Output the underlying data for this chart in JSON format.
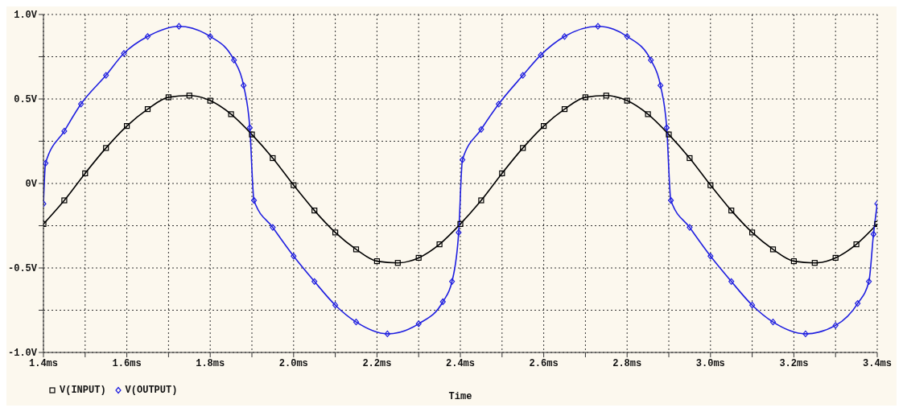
{
  "chart_data": {
    "type": "line",
    "xlabel": "Time",
    "legend": "bottom left",
    "grid": true,
    "xlim": [
      1.4,
      3.4
    ],
    "xticks": [
      {
        "value": 1.4,
        "label": "1.4ms"
      },
      {
        "value": 1.5,
        "label": null
      },
      {
        "value": 1.6,
        "label": "1.6ms"
      },
      {
        "value": 1.7,
        "label": null
      },
      {
        "value": 1.8,
        "label": "1.8ms"
      },
      {
        "value": 1.9,
        "label": null
      },
      {
        "value": 2.0,
        "label": "2.0ms"
      },
      {
        "value": 2.1,
        "label": null
      },
      {
        "value": 2.2,
        "label": "2.2ms"
      },
      {
        "value": 2.3,
        "label": null
      },
      {
        "value": 2.4,
        "label": "2.4ms"
      },
      {
        "value": 2.5,
        "label": null
      },
      {
        "value": 2.6,
        "label": "2.6ms"
      },
      {
        "value": 2.7,
        "label": null
      },
      {
        "value": 2.8,
        "label": "2.8ms"
      },
      {
        "value": 2.9,
        "label": null
      },
      {
        "value": 3.0,
        "label": "3.0ms"
      },
      {
        "value": 3.1,
        "label": null
      },
      {
        "value": 3.2,
        "label": "3.2ms"
      },
      {
        "value": 3.3,
        "label": null
      },
      {
        "value": 3.4,
        "label": "3.4ms"
      }
    ],
    "ylim": [
      -1.0,
      1.0
    ],
    "yticks": [
      {
        "value": -1.0,
        "label": "-1.0V"
      },
      {
        "value": -0.75,
        "label": null
      },
      {
        "value": -0.5,
        "label": "-0.5V"
      },
      {
        "value": -0.25,
        "label": null
      },
      {
        "value": 0,
        "label": "0V"
      },
      {
        "value": 0.25,
        "label": null
      },
      {
        "value": 0.5,
        "label": "0.5V"
      },
      {
        "value": 0.75,
        "label": null
      },
      {
        "value": 1.0,
        "label": "1.0V"
      }
    ],
    "series": [
      {
        "name": "V(INPUT)",
        "color": "#000000",
        "marker": "square",
        "x": [
          1.4,
          1.45,
          1.5,
          1.55,
          1.6,
          1.65,
          1.7,
          1.75,
          1.8,
          1.85,
          1.9,
          1.95,
          2.0,
          2.05,
          2.1,
          2.15,
          2.2,
          2.25,
          2.3,
          2.35,
          2.4,
          2.45,
          2.5,
          2.55,
          2.6,
          2.65,
          2.7,
          2.75,
          2.8,
          2.85,
          2.9,
          2.95,
          3.0,
          3.05,
          3.1,
          3.15,
          3.2,
          3.25,
          3.3,
          3.35,
          3.4
        ],
        "values": [
          -0.24,
          -0.1,
          0.06,
          0.21,
          0.34,
          0.44,
          0.51,
          0.52,
          0.49,
          0.41,
          0.29,
          0.15,
          -0.01,
          -0.16,
          -0.29,
          -0.39,
          -0.46,
          -0.47,
          -0.44,
          -0.36,
          -0.24,
          -0.1,
          0.06,
          0.21,
          0.34,
          0.44,
          0.51,
          0.52,
          0.49,
          0.41,
          0.29,
          0.15,
          -0.01,
          -0.16,
          -0.29,
          -0.39,
          -0.46,
          -0.47,
          -0.44,
          -0.36,
          -0.24
        ]
      },
      {
        "name": "V(OUTPUT)",
        "color": "#1f1fe0",
        "marker": "diamond",
        "x": [
          1.4,
          1.405,
          1.45,
          1.49,
          1.55,
          1.593,
          1.65,
          1.725,
          1.8,
          1.857,
          1.88,
          1.895,
          1.905,
          1.95,
          2.0,
          2.05,
          2.1,
          2.15,
          2.225,
          2.3,
          2.358,
          2.38,
          2.396,
          2.405,
          2.45,
          2.492,
          2.55,
          2.593,
          2.65,
          2.73,
          2.8,
          2.857,
          2.88,
          2.895,
          2.905,
          2.95,
          3.0,
          3.05,
          3.1,
          3.15,
          3.228,
          3.3,
          3.353,
          3.38,
          3.391,
          3.4
        ],
        "values": [
          -0.12,
          0.12,
          0.31,
          0.47,
          0.64,
          0.77,
          0.87,
          0.93,
          0.87,
          0.73,
          0.58,
          0.33,
          -0.1,
          -0.26,
          -0.43,
          -0.58,
          -0.72,
          -0.82,
          -0.89,
          -0.83,
          -0.7,
          -0.58,
          -0.29,
          0.14,
          0.32,
          0.47,
          0.64,
          0.76,
          0.87,
          0.93,
          0.87,
          0.73,
          0.58,
          0.33,
          -0.1,
          -0.26,
          -0.43,
          -0.58,
          -0.72,
          -0.82,
          -0.89,
          -0.84,
          -0.71,
          -0.58,
          -0.3,
          -0.12
        ]
      }
    ]
  }
}
